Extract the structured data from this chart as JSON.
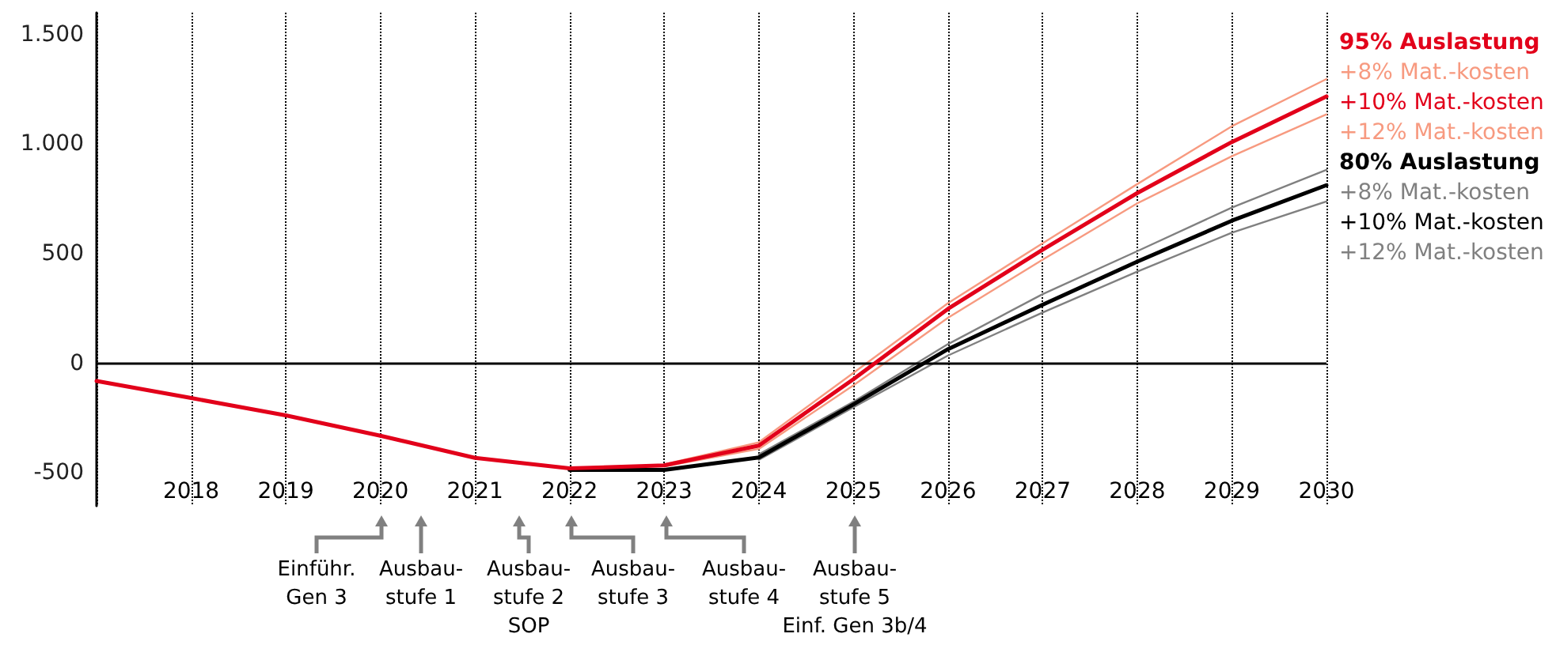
{
  "chart_data": {
    "type": "line",
    "x": [
      2017,
      2018,
      2019,
      2020,
      2021,
      2022,
      2023,
      2024,
      2025,
      2026,
      2027,
      2028,
      2029,
      2030
    ],
    "series": [
      {
        "name": "+8% Mat.-kosten",
        "color": "#f79a80",
        "values": [
          null,
          null,
          null,
          null,
          null,
          null,
          -460,
          -360,
          -43,
          275,
          548,
          818,
          1082,
          1297
        ]
      },
      {
        "name": "+10% Mat.-kosten",
        "color": "#e2001a",
        "values": [
          -80,
          -158,
          -237,
          -330,
          -431,
          -479,
          -465,
          -375,
          -72,
          249,
          519,
          777,
          1010,
          1218
        ]
      },
      {
        "name": "+12% Mat.-kosten",
        "color": "#f79a80",
        "values": [
          null,
          null,
          null,
          null,
          null,
          null,
          -470,
          -390,
          -100,
          208,
          473,
          730,
          945,
          1136
        ]
      },
      {
        "name": "+8% Mat.-kosten",
        "color": "#808080",
        "values": [
          null,
          null,
          null,
          null,
          null,
          null,
          null,
          -415,
          -175,
          88,
          316,
          512,
          711,
          883
        ]
      },
      {
        "name": "+10% Mat.-kosten",
        "color": "#000000",
        "values": [
          null,
          null,
          null,
          null,
          null,
          -486,
          -486,
          -429,
          -187,
          65,
          268,
          464,
          651,
          813
        ]
      },
      {
        "name": "+12% Mat.-kosten",
        "color": "#808080",
        "values": [
          null,
          null,
          null,
          null,
          null,
          null,
          null,
          -440,
          -200,
          36,
          232,
          419,
          596,
          739
        ]
      }
    ],
    "xlim": [
      2017,
      2030
    ],
    "xticks": [
      2018,
      2019,
      2020,
      2021,
      2022,
      2023,
      2024,
      2025,
      2026,
      2027,
      2028,
      2029,
      2030
    ],
    "ylim": [
      -650,
      1600
    ],
    "yticks": [
      {
        "value": -500,
        "label": "-500"
      },
      0,
      500,
      {
        "value": 1000,
        "label": "1.000"
      },
      {
        "value": 1500,
        "label": "1.500"
      }
    ],
    "ref_lines": [
      {
        "axis": "y",
        "value": 0,
        "color": "#000000"
      }
    ],
    "grid": "x",
    "legend": "right",
    "annotations": [
      "95% Auslastung",
      "80% Auslastung",
      "Einführ.\nGen 3",
      "Ausbau-\nstufe 1",
      "Ausbau-\nstufe 2\nSOP",
      "Ausbau-\nstufe 3",
      "Ausbau-\nstufe 4",
      "Ausbau-\nstufe 5\nEinf. Gen 3b/4"
    ]
  }
}
